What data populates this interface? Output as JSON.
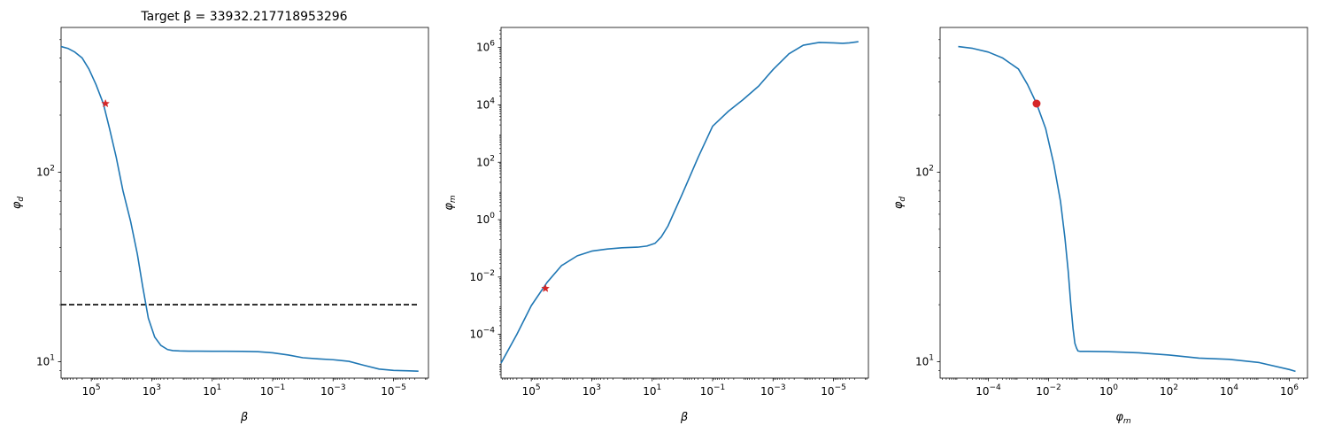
{
  "chart_data": [
    {
      "type": "line",
      "title": "Target β = 33932.217718953296",
      "xlabel": "β",
      "ylabel": "φd",
      "xscale": "log",
      "yscale": "log",
      "x_axis_inverted": true,
      "xlim": [
        1000000,
        7e-07
      ],
      "ylim": [
        8.2,
        580
      ],
      "x_ticks": [
        {
          "value": 100000,
          "base": "10",
          "exp": "5"
        },
        {
          "value": 1000,
          "base": "10",
          "exp": "3"
        },
        {
          "value": 10,
          "base": "10",
          "exp": "1"
        },
        {
          "value": 0.1,
          "base": "10",
          "exp": "−1"
        },
        {
          "value": 0.001,
          "base": "10",
          "exp": "−3"
        },
        {
          "value": 1e-05,
          "base": "10",
          "exp": "−5"
        }
      ],
      "y_ticks": [
        {
          "value": 100,
          "base": "10",
          "exp": "2"
        },
        {
          "value": 10,
          "base": "10",
          "exp": "1"
        }
      ],
      "grid": false,
      "colors": {
        "line": "#1f77b4",
        "marker": "#d62728",
        "reference": "#000000"
      },
      "series": [
        {
          "x": [
            1000000,
            600000,
            350000,
            200000,
            120000,
            70000,
            40000,
            25000,
            15000,
            9000,
            5000,
            3000,
            2000,
            1300,
            800,
            500,
            300,
            200,
            120,
            60,
            30,
            10,
            1,
            0.3,
            0.1,
            0.03,
            0.01,
            0.003,
            0.001,
            0.0003,
            0.0001,
            3e-05,
            1e-05,
            3e-06,
            1.5e-06
          ],
          "y": [
            460,
            450,
            430,
            400,
            350,
            290,
            230,
            170,
            120,
            80,
            55,
            37,
            25,
            17,
            13.5,
            12.2,
            11.6,
            11.45,
            11.4,
            11.38,
            11.37,
            11.36,
            11.35,
            11.3,
            11.15,
            10.85,
            10.5,
            10.35,
            10.25,
            10.05,
            9.6,
            9.15,
            9.0,
            8.95,
            8.92
          ]
        }
      ],
      "reference_line": {
        "y": 20,
        "x_range": [
          1000000,
          1.5e-06
        ],
        "style": "dashed"
      },
      "marker": {
        "shape": "star",
        "x": 33932.217718953296,
        "y": 230
      }
    },
    {
      "type": "line",
      "title": "",
      "xlabel": "β",
      "ylabel": "φm",
      "xscale": "log",
      "yscale": "log",
      "x_axis_inverted": true,
      "xlim": [
        1000000,
        7e-07
      ],
      "ylim": [
        3e-06,
        5000000
      ],
      "x_ticks": [
        {
          "value": 100000,
          "base": "10",
          "exp": "5"
        },
        {
          "value": 1000,
          "base": "10",
          "exp": "3"
        },
        {
          "value": 10,
          "base": "10",
          "exp": "1"
        },
        {
          "value": 0.1,
          "base": "10",
          "exp": "−1"
        },
        {
          "value": 0.001,
          "base": "10",
          "exp": "−3"
        },
        {
          "value": 1e-05,
          "base": "10",
          "exp": "−5"
        }
      ],
      "y_ticks": [
        {
          "value": 1000000,
          "base": "10",
          "exp": "6"
        },
        {
          "value": 10000,
          "base": "10",
          "exp": "4"
        },
        {
          "value": 100,
          "base": "10",
          "exp": "2"
        },
        {
          "value": 1,
          "base": "10",
          "exp": "0"
        },
        {
          "value": 0.01,
          "base": "10",
          "exp": "−2"
        },
        {
          "value": 0.0001,
          "base": "10",
          "exp": "−4"
        }
      ],
      "grid": false,
      "colors": {
        "line": "#1f77b4",
        "marker": "#d62728"
      },
      "series": [
        {
          "x": [
            1000000,
            300000,
            100000,
            30000,
            10000,
            3000,
            1000,
            300,
            100,
            30,
            15,
            8,
            5,
            3,
            1,
            0.3,
            0.1,
            0.03,
            0.01,
            0.003,
            0.001,
            0.0003,
            0.0001,
            3e-05,
            1e-05,
            5e-06,
            3e-06,
            1.5e-06
          ],
          "y": [
            1e-05,
            0.0001,
            0.001,
            0.0065,
            0.025,
            0.055,
            0.08,
            0.095,
            0.105,
            0.11,
            0.12,
            0.15,
            0.25,
            0.6,
            8,
            150,
            1800,
            6000,
            15000,
            45000,
            170000,
            600000,
            1200000,
            1500000,
            1450000,
            1400000,
            1450000,
            1600000
          ]
        }
      ],
      "marker": {
        "shape": "star",
        "x": 33932.217718953296,
        "y": 0.004
      }
    },
    {
      "type": "line",
      "title": "",
      "xlabel": "φm",
      "ylabel": "φd",
      "xscale": "log",
      "yscale": "log",
      "x_axis_inverted": false,
      "xlim": [
        2.5e-06,
        4000000
      ],
      "ylim": [
        8.2,
        580
      ],
      "x_ticks": [
        {
          "value": 0.0001,
          "base": "10",
          "exp": "−4"
        },
        {
          "value": 0.01,
          "base": "10",
          "exp": "−2"
        },
        {
          "value": 1,
          "base": "10",
          "exp": "0"
        },
        {
          "value": 100,
          "base": "10",
          "exp": "2"
        },
        {
          "value": 10000,
          "base": "10",
          "exp": "4"
        },
        {
          "value": 1000000,
          "base": "10",
          "exp": "6"
        }
      ],
      "y_ticks": [
        {
          "value": 100,
          "base": "10",
          "exp": "2"
        },
        {
          "value": 10,
          "base": "10",
          "exp": "1"
        }
      ],
      "grid": false,
      "colors": {
        "line": "#1f77b4",
        "marker": "#d62728"
      },
      "series": [
        {
          "x": [
            1e-05,
            3e-05,
            0.0001,
            0.0003,
            0.001,
            0.002,
            0.004,
            0.008,
            0.015,
            0.025,
            0.035,
            0.045,
            0.055,
            0.065,
            0.075,
            0.085,
            0.095,
            0.11,
            0.2,
            1,
            10,
            100,
            1000,
            10000,
            100000,
            1000000,
            1600000
          ],
          "y": [
            460,
            450,
            430,
            400,
            350,
            290,
            230,
            170,
            110,
            70,
            45,
            30,
            20,
            15,
            12.5,
            11.8,
            11.4,
            11.35,
            11.35,
            11.3,
            11.15,
            10.85,
            10.45,
            10.3,
            9.9,
            9.1,
            8.9
          ]
        }
      ],
      "marker": {
        "shape": "circle",
        "x": 0.004,
        "y": 230
      }
    }
  ]
}
